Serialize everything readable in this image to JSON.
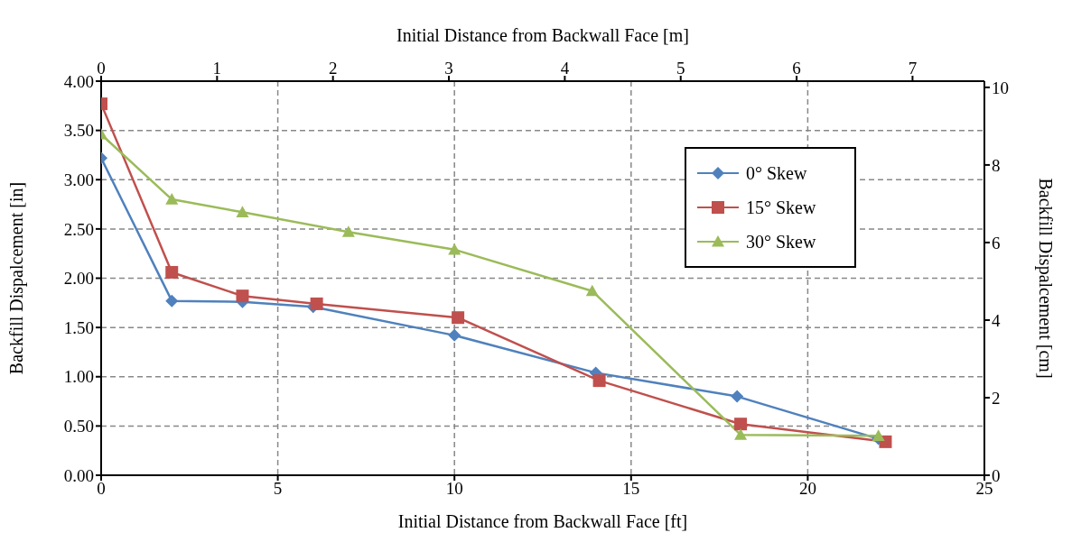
{
  "chart_data": {
    "type": "line",
    "xlabel": "Initial Distance from Backwall Face [ft]",
    "ylabel": "Backfill Dispalcement [in]",
    "y2label": "Backfill Dispalcement [cm]",
    "x2label": "Initial Distance from Backwall Face [m]",
    "xlim": [
      0,
      25
    ],
    "xticks": [
      0,
      5,
      10,
      15,
      20,
      25
    ],
    "ylim": [
      0,
      4
    ],
    "yticks": [
      {
        "value": 0,
        "label": "0.00"
      },
      {
        "value": 0.5,
        "label": "0.50"
      },
      {
        "value": 1,
        "label": "1.00"
      },
      {
        "value": 1.5,
        "label": "1.50"
      },
      {
        "value": 2,
        "label": "2.00"
      },
      {
        "value": 2.5,
        "label": "2.50"
      },
      {
        "value": 3,
        "label": "3.00"
      },
      {
        "value": 3.5,
        "label": "3.50"
      },
      {
        "value": 4,
        "label": "4.00"
      }
    ],
    "x2lim": [
      0,
      7.62
    ],
    "x2ticks": [
      0,
      1,
      2,
      3,
      4,
      5,
      6,
      7
    ],
    "y2lim": [
      0,
      10.16
    ],
    "y2ticks": [
      0,
      2,
      4,
      6,
      8,
      10
    ],
    "grid": true,
    "legend": "top right",
    "line_style": "solid",
    "series": [
      {
        "name": "0° Skew",
        "color": "#4f81bd",
        "marker": "diamond",
        "x": [
          0,
          2,
          4,
          6,
          10,
          14,
          18,
          22
        ],
        "values": [
          3.22,
          1.77,
          1.76,
          1.71,
          1.42,
          1.04,
          0.8,
          0.37
        ]
      },
      {
        "name": "15° Skew",
        "color": "#c0504d",
        "marker": "square",
        "x": [
          0,
          2,
          4,
          6.1,
          10.1,
          14.1,
          18.1,
          22.2
        ],
        "values": [
          3.77,
          2.06,
          1.82,
          1.74,
          1.6,
          0.96,
          0.52,
          0.34
        ]
      },
      {
        "name": "30° Skew",
        "color": "#9bbb59",
        "marker": "triangle",
        "x": [
          0,
          2,
          4,
          7,
          10,
          13.9,
          18.1,
          22
        ],
        "values": [
          3.46,
          2.8,
          2.67,
          2.47,
          2.29,
          1.87,
          0.41,
          0.4
        ]
      }
    ]
  }
}
